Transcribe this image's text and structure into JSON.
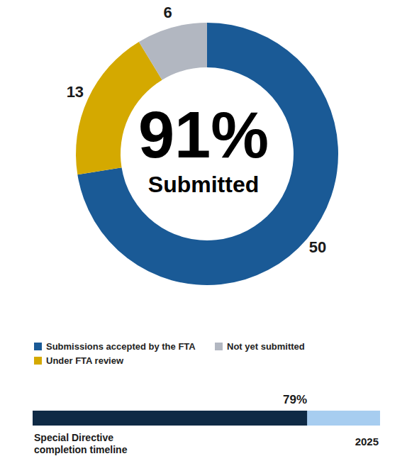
{
  "chart_data": [
    {
      "type": "pie",
      "categories": [
        "Submissions accepted by the FTA",
        "Under FTA review",
        "Not yet submitted"
      ],
      "values": [
        50,
        13,
        6
      ],
      "colors": [
        "#1a5a96",
        "#d4a900",
        "#b2b7c1"
      ],
      "data_labels": true,
      "legend": "bottom",
      "annotations": [
        "91%",
        "Submitted"
      ]
    },
    {
      "type": "bar",
      "orientation": "horizontal",
      "categories": [
        "Special Directive completion timeline"
      ],
      "values": [
        79
      ],
      "value_labels": [
        "79%"
      ],
      "data_labels": true,
      "xlim": [
        0,
        100
      ],
      "color": "#0f2a45",
      "tick_labels": false,
      "annotations": [
        "2025"
      ]
    }
  ]
}
